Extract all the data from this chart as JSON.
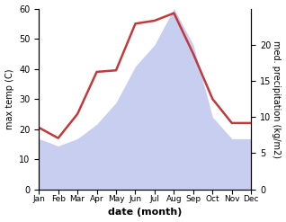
{
  "months": [
    "Jan",
    "Feb",
    "Mar",
    "Apr",
    "May",
    "Jun",
    "Jul",
    "Aug",
    "Sep",
    "Oct",
    "Nov",
    "Dec"
  ],
  "month_positions": [
    0,
    1,
    2,
    3,
    4,
    5,
    6,
    7,
    8,
    9,
    10,
    11
  ],
  "temperature": [
    20.5,
    17.0,
    25.0,
    39.0,
    39.5,
    55.0,
    56.0,
    58.5,
    45.0,
    30.0,
    22.0,
    22.0
  ],
  "precipitation_right": [
    7.0,
    6.0,
    7.0,
    9.0,
    12.0,
    17.0,
    20.0,
    25.0,
    20.0,
    10.0,
    7.0,
    7.0
  ],
  "temp_color": "#c0393b",
  "precip_color": "#aab4e8",
  "precip_fill_alpha": 0.65,
  "ylabel_left": "max temp (C)",
  "ylabel_right": "med. precipitation (kg/m2)",
  "xlabel": "date (month)",
  "ylim_left": [
    0,
    60
  ],
  "ylim_right": [
    0,
    25
  ],
  "yticks_left": [
    0,
    10,
    20,
    30,
    40,
    50,
    60
  ],
  "yticks_right": [
    0,
    5,
    10,
    15,
    20
  ],
  "background_color": "#ffffff",
  "line_width": 1.8
}
